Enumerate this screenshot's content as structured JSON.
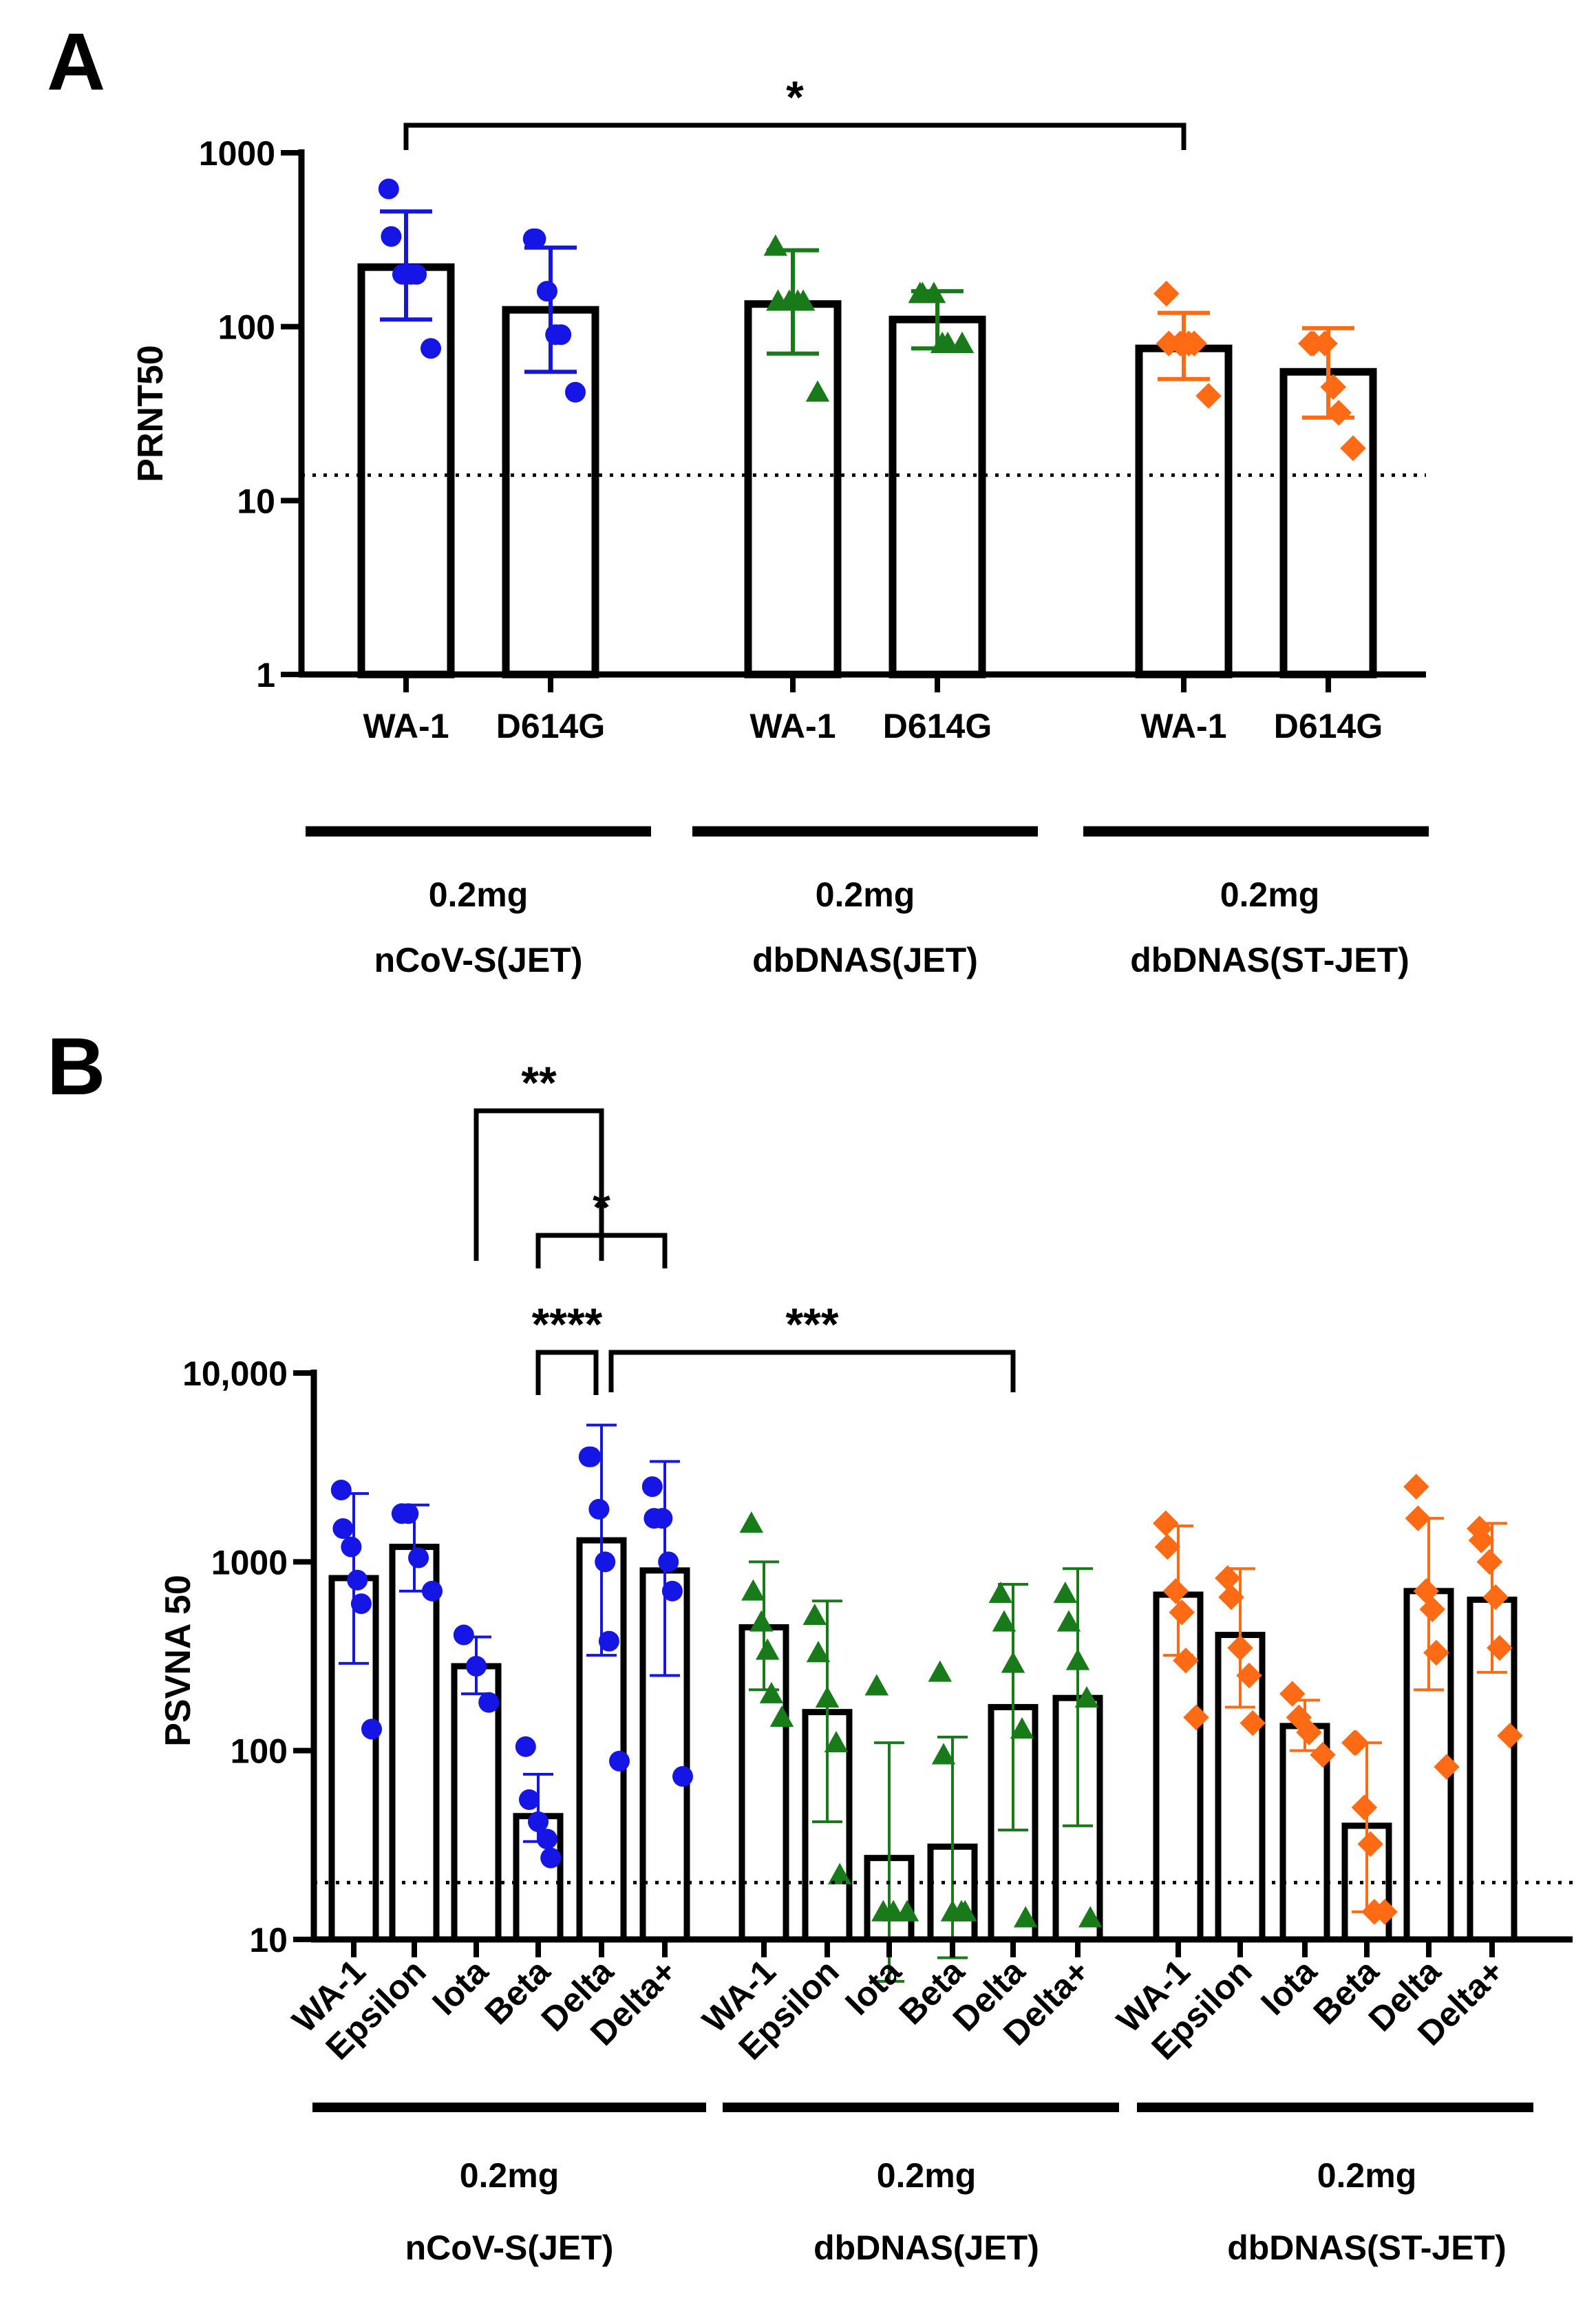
{
  "chart_data": [
    {
      "panel": "A",
      "type": "bar",
      "yscale": "log",
      "ylabel": "PRNT50",
      "ylim": [
        1,
        1000
      ],
      "yticks": [
        "1",
        "10",
        "100",
        "1000"
      ],
      "threshold": 14,
      "colors": {
        "nCoV": "#1515e6",
        "dbJET": "#197a19",
        "dbST": "#ff6a14"
      },
      "groups": [
        {
          "line1": "0.2mg",
          "line2": "nCoV-S(JET)",
          "color": "#1515e6",
          "marker": "circle",
          "bars": [
            {
              "label": "WA-1",
              "value": 220,
              "err": [
                110,
                460
              ],
              "points": [
                620,
                330,
                200,
                200,
                200,
                75
              ]
            },
            {
              "label": "D614G",
              "value": 125,
              "err": [
                55,
                285
              ],
              "points": [
                320,
                320,
                160,
                90,
                90,
                42
              ]
            }
          ]
        },
        {
          "line1": "0.2mg",
          "line2": "dbDNAS(JET)",
          "color": "#197a19",
          "marker": "triangle",
          "bars": [
            {
              "label": "WA-1",
              "value": 135,
              "err": [
                70,
                275
              ],
              "points": [
                290,
                140,
                140,
                140,
                140,
                42
              ]
            },
            {
              "label": "D614G",
              "value": 110,
              "err": [
                75,
                160
              ],
              "points": [
                155,
                155,
                155,
                80,
                80,
                80
              ]
            }
          ]
        },
        {
          "line1": "0.2mg",
          "line2": "dbDNAS(ST-JET)",
          "color": "#ff6a14",
          "marker": "diamond",
          "bars": [
            {
              "label": "WA-1",
              "value": 75,
              "err": [
                50,
                120
              ],
              "points": [
                155,
                80,
                80,
                80,
                80,
                40
              ]
            },
            {
              "label": "D614G",
              "value": 55,
              "err": [
                30,
                98
              ],
              "points": [
                80,
                80,
                80,
                45,
                32,
                20
              ]
            }
          ]
        }
      ],
      "comparisons": [
        {
          "from": [
            0,
            0
          ],
          "to": [
            2,
            0
          ],
          "stars": "*"
        }
      ]
    },
    {
      "panel": "B",
      "type": "bar",
      "yscale": "log",
      "ylabel": "PSVNA 50",
      "ylim": [
        10,
        10000
      ],
      "yticks": [
        "10",
        "100",
        "1000",
        "10,000"
      ],
      "threshold": 20,
      "groups": [
        {
          "line1": "0.2mg",
          "line2": "nCoV-S(JET)",
          "color": "#1515e6",
          "marker": "circle",
          "bars": [
            {
              "label": "WA-1",
              "value": 820,
              "err": [
                290,
                2300
              ],
              "points": [
                2400,
                1500,
                1200,
                800,
                600,
                130
              ]
            },
            {
              "label": "Epsilon",
              "value": 1200,
              "err": [
                700,
                2000
              ],
              "points": [
                1800,
                1800,
                1050,
                700
              ]
            },
            {
              "label": "Iota",
              "value": 280,
              "err": [
                200,
                400
              ],
              "points": [
                410,
                280,
                180
              ]
            },
            {
              "label": "Beta",
              "value": 45,
              "err": [
                33,
                75
              ],
              "points": [
                105,
                55,
                42,
                34,
                27
              ]
            },
            {
              "label": "Delta",
              "value": 1300,
              "err": [
                320,
                5300
              ],
              "points": [
                3600,
                3600,
                1900,
                1000,
                380,
                88
              ]
            },
            {
              "label": "Delta+",
              "value": 900,
              "err": [
                250,
                3400
              ],
              "points": [
                2500,
                1700,
                1700,
                1000,
                700,
                73
              ]
            }
          ]
        },
        {
          "line1": "0.2mg",
          "line2": "dbDNAS(JET)",
          "color": "#197a19",
          "marker": "triangle",
          "bars": [
            {
              "label": "WA-1",
              "value": 450,
              "err": [
                210,
                1000
              ],
              "points": [
                1600,
                700,
                480,
                340,
                200,
                150
              ]
            },
            {
              "label": "Epsilon",
              "value": 160,
              "err": [
                42,
                620
              ],
              "points": [
                520,
                330,
                190,
                110,
                22
              ]
            },
            {
              "label": "Iota",
              "value": 27,
              "err": [
                6,
                110
              ],
              "points": [
                220,
                14,
                14,
                14
              ]
            },
            {
              "label": "Beta",
              "value": 31,
              "err": [
                8,
                118
              ],
              "points": [
                260,
                95,
                14,
                14,
                14
              ]
            },
            {
              "label": "Delta",
              "value": 170,
              "err": [
                38,
                760
              ],
              "points": [
                680,
                480,
                290,
                130,
                13
              ]
            },
            {
              "label": "Delta+",
              "value": 190,
              "err": [
                40,
                920
              ],
              "points": [
                680,
                480,
                300,
                190,
                13
              ]
            }
          ]
        },
        {
          "line1": "0.2mg",
          "line2": "dbDNAS(ST-JET)",
          "color": "#ff6a14",
          "marker": "diamond",
          "bars": [
            {
              "label": "WA-1",
              "value": 670,
              "err": [
                320,
                1550
              ],
              "points": [
                1600,
                1200,
                700,
                540,
                300,
                150
              ]
            },
            {
              "label": "Epsilon",
              "value": 410,
              "err": [
                170,
                920
              ],
              "points": [
                820,
                650,
                350,
                250,
                140
              ]
            },
            {
              "label": "Iota",
              "value": 135,
              "err": [
                100,
                185
              ],
              "points": [
                200,
                150,
                125,
                95
              ]
            },
            {
              "label": "Beta",
              "value": 40,
              "err": [
                14,
                110
              ],
              "points": [
                110,
                110,
                50,
                32,
                14,
                14
              ]
            },
            {
              "label": "Delta",
              "value": 700,
              "err": [
                210,
                1700
              ],
              "points": [
                2500,
                1700,
                700,
                560,
                330,
                82
              ]
            },
            {
              "label": "Delta+",
              "value": 630,
              "err": [
                260,
                1600
              ],
              "points": [
                1500,
                1300,
                1000,
                650,
                350,
                120
              ]
            }
          ]
        }
      ],
      "comparisons": [
        {
          "from": [
            0,
            2
          ],
          "to": [
            0,
            4
          ],
          "stars": "**"
        },
        {
          "from": [
            0,
            3
          ],
          "to": [
            0,
            5
          ],
          "stars": "*"
        },
        {
          "from": [
            0,
            3
          ],
          "to": [
            0,
            4
          ],
          "stars": "****"
        },
        {
          "from": [
            0,
            4
          ],
          "to": [
            1,
            4
          ],
          "stars": "***"
        }
      ]
    }
  ]
}
